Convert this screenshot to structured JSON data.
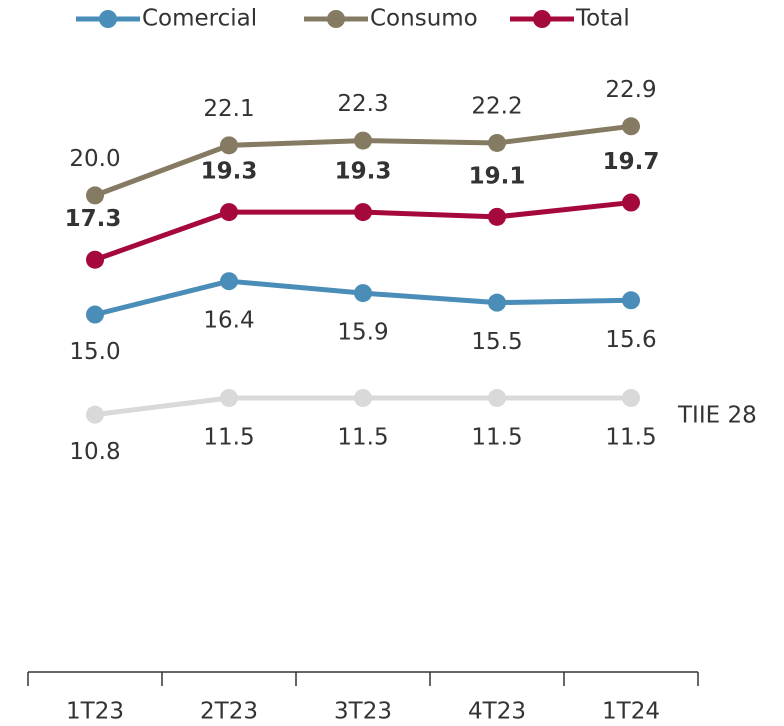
{
  "chart_data": {
    "type": "line",
    "categories": [
      "1T23",
      "2T23",
      "3T23",
      "4T23",
      "1T24"
    ],
    "ylim": [
      0,
      28.2
    ],
    "series": [
      {
        "name": "Comercial",
        "color": "#4a8db8",
        "values": [
          15.0,
          16.4,
          15.9,
          15.5,
          15.6
        ],
        "value_labels": [
          "15.0",
          "16.4",
          "15.9",
          "15.5",
          "15.6"
        ],
        "label_side": "below",
        "legend": true
      },
      {
        "name": "Consumo",
        "color": "#857b62",
        "values": [
          20.0,
          22.1,
          22.3,
          22.2,
          22.9
        ],
        "value_labels": [
          "20.0",
          "22.1",
          "22.3",
          "22.2",
          "22.9"
        ],
        "label_side": "above",
        "legend": true
      },
      {
        "name": "Total",
        "color": "#a5083a",
        "values": [
          17.3,
          19.3,
          19.3,
          19.1,
          19.7
        ],
        "value_labels": [
          "17.3",
          "19.3",
          "19.3",
          "19.1",
          "19.7"
        ],
        "label_side": "above",
        "bold": true,
        "legend": true
      },
      {
        "name": "TIIE 28",
        "color": "#d9d9d9",
        "values": [
          10.8,
          11.5,
          11.5,
          11.5,
          11.5
        ],
        "value_labels": [
          "10.8",
          "11.5",
          "11.5",
          "11.5",
          "11.5"
        ],
        "label_side": "below",
        "legend": false
      }
    ]
  }
}
